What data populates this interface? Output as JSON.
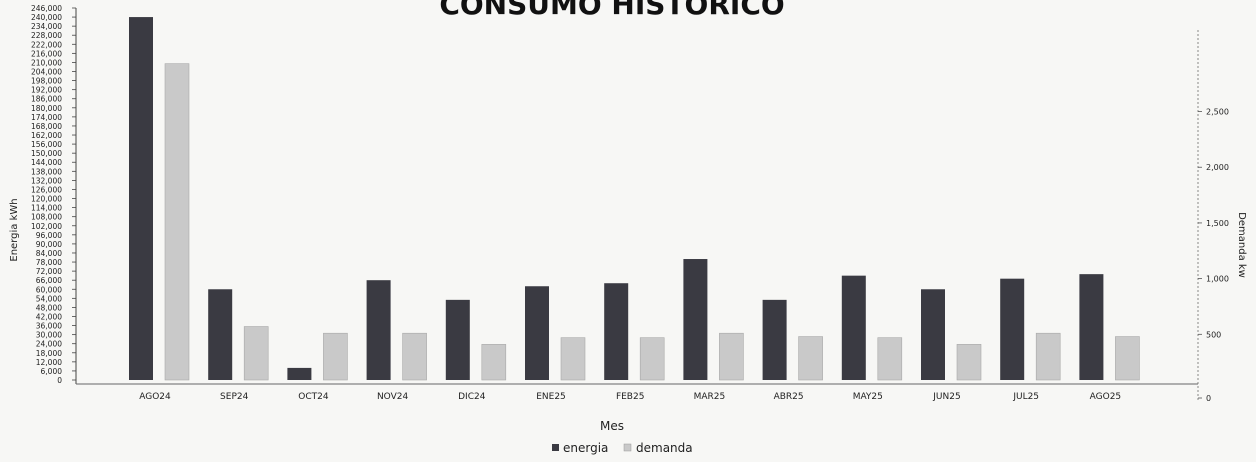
{
  "chart_data": {
    "type": "bar",
    "title": "CONSUMO HISTORICO",
    "xlabel": "Mes",
    "ylabel_left": "Energia kWh",
    "ylabel_right": "Demanda kw",
    "categories": [
      "AGO24",
      "SEP24",
      "OCT24",
      "NOV24",
      "DIC24",
      "ENE25",
      "FEB25",
      "MAR25",
      "ABR25",
      "MAY25",
      "JUN25",
      "JUL25",
      "AGO25"
    ],
    "series": [
      {
        "name": "energia",
        "axis": "left",
        "color": "#3a3a42",
        "values": [
          240000,
          60000,
          8000,
          66000,
          53000,
          62000,
          64000,
          80000,
          53000,
          69000,
          60000,
          67000,
          70000
        ]
      },
      {
        "name": "demanda",
        "axis": "right",
        "color": "#c9c9c9",
        "values": [
          2840,
          480,
          420,
          420,
          320,
          380,
          380,
          420,
          390,
          380,
          320,
          420,
          390
        ]
      }
    ],
    "left_axis": {
      "ylim": [
        0,
        246000
      ],
      "ticks": [
        "246,000",
        "240,000",
        "234,000",
        "228,000",
        "222,000",
        "216,000",
        "210,000",
        "204,000",
        "198,000",
        "192,000",
        "186,000",
        "180,000",
        "174,000",
        "168,000",
        "162,000",
        "156,000",
        "150,000",
        "144,000",
        "138,000",
        "132,000",
        "126,000",
        "120,000",
        "114,000",
        "108,000",
        "102,000",
        "96,000",
        "90,000",
        "84,000",
        "78,000",
        "72,000",
        "66,000",
        "60,000",
        "54,000",
        "48,000",
        "42,000",
        "36,000",
        "30,000",
        "24,000",
        "18,000",
        "12,000",
        "6,000",
        "0"
      ],
      "tick_values": [
        246000,
        240000,
        234000,
        228000,
        222000,
        216000,
        210000,
        204000,
        198000,
        192000,
        186000,
        180000,
        174000,
        168000,
        162000,
        156000,
        150000,
        144000,
        138000,
        132000,
        126000,
        120000,
        114000,
        108000,
        102000,
        96000,
        90000,
        84000,
        78000,
        72000,
        66000,
        60000,
        54000,
        48000,
        42000,
        36000,
        30000,
        24000,
        18000,
        12000,
        6000,
        0
      ]
    },
    "right_axis": {
      "ylim": [
        0,
        3000
      ],
      "ticks": [
        "2,500",
        "2,000",
        "1,500",
        "1,000",
        "500",
        "0"
      ],
      "tick_values": [
        2500,
        2000,
        1500,
        1000,
        500,
        0
      ]
    },
    "legend": {
      "position": "bottom",
      "items": [
        "energia",
        "demanda"
      ]
    },
    "grid": false
  }
}
